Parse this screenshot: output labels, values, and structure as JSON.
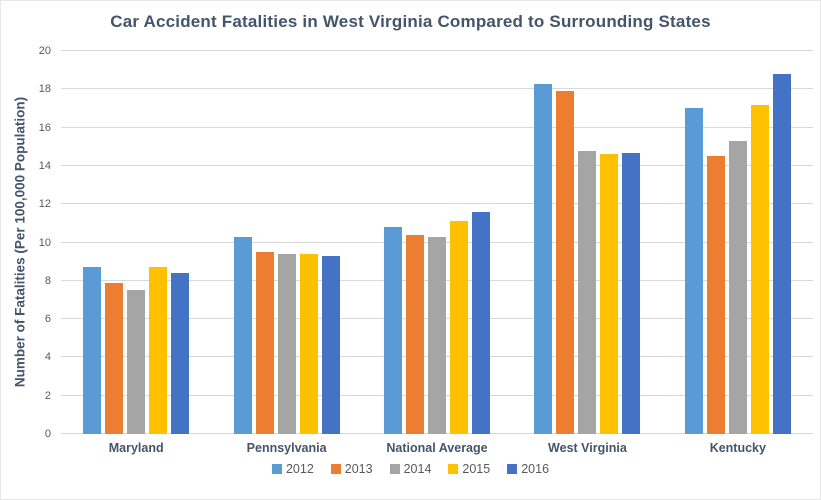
{
  "chart_data": {
    "type": "bar",
    "title": "Car Accident Fatalities in West Virginia Compared to Surrounding States",
    "ylabel": "Number of Fatalities (Per 100,000 Population)",
    "xlabel": "",
    "ylim": [
      0,
      20
    ],
    "yticks": [
      0,
      2,
      4,
      6,
      8,
      10,
      12,
      14,
      16,
      18,
      20
    ],
    "grid": true,
    "legend_position": "bottom",
    "categories": [
      "Maryland",
      "Pennsylvania",
      "National Average",
      "West Virginia",
      "Kentucky"
    ],
    "series": [
      {
        "name": "2012",
        "color": "#5B9BD5",
        "values": [
          8.7,
          10.3,
          10.8,
          18.3,
          17.0
        ]
      },
      {
        "name": "2013",
        "color": "#ED7D31",
        "values": [
          7.9,
          9.5,
          10.4,
          17.9,
          14.5
        ]
      },
      {
        "name": "2014",
        "color": "#A5A5A5",
        "values": [
          7.5,
          9.4,
          10.3,
          14.8,
          15.3
        ]
      },
      {
        "name": "2015",
        "color": "#FFC000",
        "values": [
          8.7,
          9.4,
          11.1,
          14.6,
          17.2
        ]
      },
      {
        "name": "2016",
        "color": "#4472C4",
        "values": [
          8.4,
          9.3,
          11.6,
          14.7,
          18.8
        ]
      }
    ]
  },
  "colors": {
    "title_text": "#44546A",
    "axis_label_text": "#44546A",
    "tick_text": "#595959",
    "legend_text": "#595959",
    "gridline": "#D9D9D9",
    "background": "#FFFFFF",
    "border": "#E7E7E7"
  }
}
